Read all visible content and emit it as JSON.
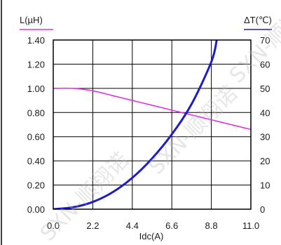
{
  "chart_data": {
    "type": "line",
    "xlabel": "Idc(A)",
    "ylabel_left": "L(µH)",
    "ylabel_right": "ΔT(℃)",
    "xlim": [
      0,
      11
    ],
    "ylim_left": [
      0,
      1.4
    ],
    "ylim_right": [
      0,
      70
    ],
    "x_ticks": [
      "0.0",
      "2.2",
      "4.4",
      "6.6",
      "8.8",
      "11.0"
    ],
    "y_left_ticks": [
      "0.00",
      "0.20",
      "0.40",
      "0.60",
      "0.80",
      "1.00",
      "1.20",
      "1.40"
    ],
    "y_right_ticks": [
      "0",
      "10",
      "20",
      "30",
      "40",
      "50",
      "60",
      "70"
    ],
    "grid": true,
    "series": [
      {
        "axis": "left",
        "color": "#e62ee6",
        "x": [
          0,
          1.1,
          2.2,
          3.3,
          4.4,
          5.5,
          6.6,
          7.7,
          8.8,
          9.9,
          11.0
        ],
        "y": [
          1.0,
          1.0,
          0.98,
          0.94,
          0.9,
          0.86,
          0.82,
          0.78,
          0.74,
          0.7,
          0.66
        ]
      },
      {
        "axis": "right",
        "color": "#1c1cc8",
        "x": [
          0,
          1.1,
          2.2,
          3.3,
          4.4,
          5.5,
          6.6,
          7.7,
          8.8,
          9.1
        ],
        "y": [
          0,
          0.8,
          3,
          7,
          13,
          21,
          31,
          43.5,
          61,
          70
        ]
      }
    ]
  },
  "watermark": "SXN-顺翔诺"
}
